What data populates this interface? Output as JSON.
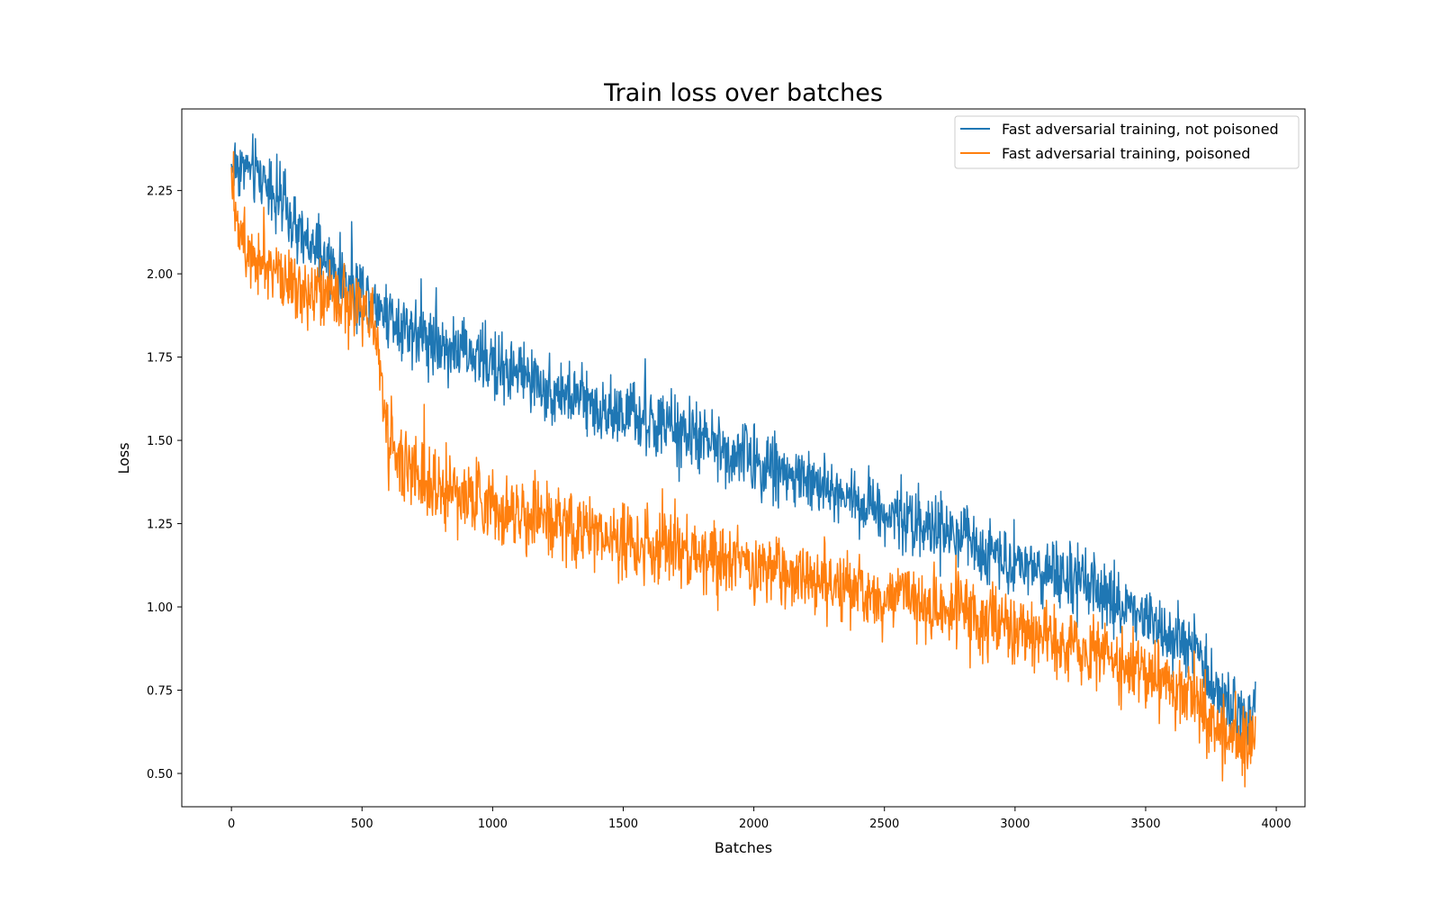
{
  "chart_data": {
    "type": "line",
    "title": "Train loss over batches",
    "xlabel": "Batches",
    "ylabel": "Loss",
    "xlim": [
      -190,
      4110
    ],
    "ylim": [
      0.4,
      2.495
    ],
    "xticks": [
      0,
      500,
      1000,
      1500,
      2000,
      2500,
      3000,
      3500,
      4000
    ],
    "xtick_labels": [
      "0",
      "500",
      "1000",
      "1500",
      "2000",
      "2500",
      "3000",
      "3500",
      "4000"
    ],
    "yticks": [
      0.5,
      0.75,
      1.0,
      1.25,
      1.5,
      1.75,
      2.0,
      2.25
    ],
    "ytick_labels": [
      "0.50",
      "0.75",
      "1.00",
      "1.25",
      "1.50",
      "1.75",
      "2.00",
      "2.25"
    ],
    "grid": false,
    "legend_position": "top-right",
    "series": [
      {
        "name": "Fast adversarial training, not poisoned",
        "color": "#1f77b4",
        "x": [
          0,
          50,
          100,
          150,
          200,
          250,
          300,
          350,
          400,
          450,
          500,
          550,
          600,
          700,
          800,
          900,
          1000,
          1100,
          1200,
          1300,
          1400,
          1500,
          1600,
          1700,
          1800,
          1900,
          2000,
          2100,
          2200,
          2300,
          2400,
          2500,
          2600,
          2700,
          2800,
          2900,
          3000,
          3100,
          3200,
          3300,
          3400,
          3500,
          3600,
          3700,
          3750,
          3800,
          3850,
          3900,
          3920
        ],
        "y": [
          2.33,
          2.32,
          2.3,
          2.27,
          2.2,
          2.12,
          2.08,
          2.05,
          2.0,
          1.97,
          1.95,
          1.92,
          1.88,
          1.83,
          1.79,
          1.76,
          1.73,
          1.7,
          1.66,
          1.63,
          1.6,
          1.58,
          1.55,
          1.53,
          1.5,
          1.47,
          1.44,
          1.41,
          1.38,
          1.35,
          1.32,
          1.29,
          1.26,
          1.23,
          1.2,
          1.17,
          1.14,
          1.11,
          1.08,
          1.05,
          1.01,
          0.97,
          0.92,
          0.86,
          0.77,
          0.72,
          0.69,
          0.68,
          0.72
        ],
        "noise": 0.05
      },
      {
        "name": "Fast adversarial training, poisoned",
        "color": "#ff7f0e",
        "x": [
          0,
          25,
          60,
          100,
          150,
          200,
          250,
          300,
          350,
          400,
          450,
          500,
          540,
          560,
          580,
          600,
          650,
          700,
          800,
          900,
          1000,
          1100,
          1200,
          1300,
          1400,
          1500,
          1600,
          1700,
          1800,
          1900,
          2000,
          2100,
          2200,
          2300,
          2400,
          2500,
          2600,
          2700,
          2800,
          2900,
          3000,
          3100,
          3200,
          3300,
          3400,
          3500,
          3600,
          3700,
          3750,
          3800,
          3850,
          3900,
          3920
        ],
        "y": [
          2.32,
          2.15,
          2.08,
          2.06,
          2.03,
          2.0,
          1.97,
          1.95,
          1.93,
          1.92,
          1.9,
          1.88,
          1.87,
          1.8,
          1.63,
          1.5,
          1.44,
          1.4,
          1.36,
          1.33,
          1.3,
          1.28,
          1.26,
          1.24,
          1.22,
          1.2,
          1.18,
          1.17,
          1.15,
          1.14,
          1.12,
          1.1,
          1.08,
          1.07,
          1.05,
          1.03,
          1.02,
          1.0,
          0.98,
          0.96,
          0.93,
          0.91,
          0.89,
          0.87,
          0.84,
          0.81,
          0.77,
          0.72,
          0.65,
          0.62,
          0.6,
          0.6,
          0.62
        ],
        "noise": 0.055
      }
    ]
  }
}
